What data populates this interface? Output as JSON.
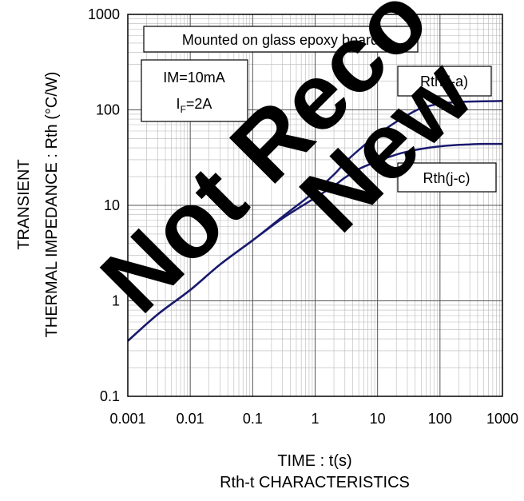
{
  "chart_data": {
    "type": "line",
    "title": "Rth-t CHARACTERISTICS",
    "xlabel": "TIME : t(s)",
    "ylabel_line1": "TRANSIENT",
    "ylabel_line2": "THERMAL IMPEDANCE : Rth (°C/W)",
    "xscale": "log",
    "yscale": "log",
    "xlim": [
      0.001,
      1000
    ],
    "ylim": [
      0.1,
      1000
    ],
    "grid": true,
    "x_ticks": [
      {
        "value": 0.001,
        "label": "0.001"
      },
      {
        "value": 0.01,
        "label": "0.01"
      },
      {
        "value": 0.1,
        "label": "0.1"
      },
      {
        "value": 1,
        "label": "1"
      },
      {
        "value": 10,
        "label": "10"
      },
      {
        "value": 100,
        "label": "100"
      },
      {
        "value": 1000,
        "label": "1000"
      }
    ],
    "y_ticks": [
      {
        "value": 0.1,
        "label": "0.1"
      },
      {
        "value": 1,
        "label": "1"
      },
      {
        "value": 10,
        "label": "10"
      },
      {
        "value": 100,
        "label": "100"
      },
      {
        "value": 1000,
        "label": "1000"
      }
    ],
    "line_color": "#1a1a6e",
    "series": [
      {
        "name": "Rth(j-a)",
        "x": [
          0.001,
          0.003,
          0.01,
          0.03,
          0.1,
          0.3,
          1,
          2,
          3,
          5,
          10,
          20,
          30,
          50,
          100,
          200,
          300,
          500,
          1000
        ],
        "y": [
          0.38,
          0.72,
          1.3,
          2.4,
          4.3,
          7.6,
          14,
          21,
          28,
          38,
          55,
          75,
          88,
          104,
          116,
          121,
          122,
          123,
          124
        ]
      },
      {
        "name": "Rth(j-c)",
        "x": [
          0.001,
          0.003,
          0.01,
          0.03,
          0.1,
          0.3,
          1,
          2,
          3,
          5,
          10,
          20,
          30,
          50,
          100,
          200,
          300,
          500,
          1000
        ],
        "y": [
          0.38,
          0.72,
          1.3,
          2.4,
          4.3,
          7.3,
          12,
          16,
          19.5,
          24,
          29,
          34,
          36.5,
          39,
          41.5,
          43,
          43.5,
          44,
          44
        ]
      }
    ],
    "annotations": {
      "board": "Mounted on glass epoxy board",
      "condition_line1": "IM=10mA",
      "condition_line2_main": "I",
      "condition_line2_sub": "F",
      "condition_line2_rest": "=2A"
    },
    "watermark": "Not Recommended for New Design"
  }
}
